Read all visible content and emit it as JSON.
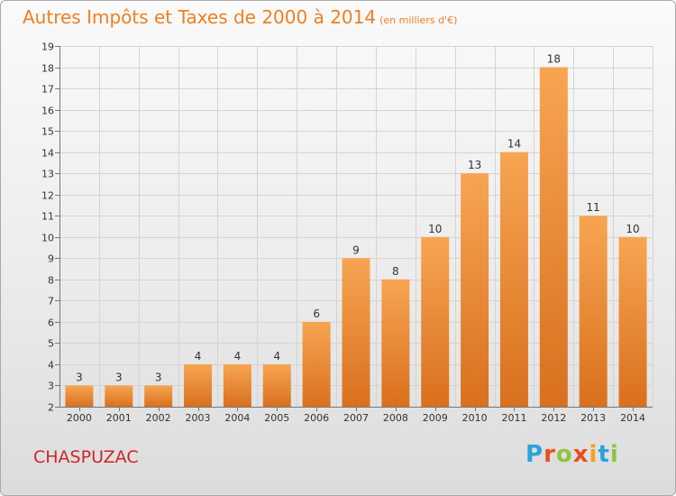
{
  "title": "Autres Impôts et Taxes de 2000 à 2014",
  "subtitle": "(en milliers d'€)",
  "commune": "CHASPUZAC",
  "logo": {
    "text": "Proxiti",
    "colors": [
      "#2aa3dc",
      "#e94e1b",
      "#8cc63f",
      "#f4a11d"
    ]
  },
  "colors": {
    "bar_top": "#f7a552",
    "bar_bottom": "#d9701d",
    "title": "#ef7f21",
    "commune": "#d2232a"
  },
  "chart_data": {
    "type": "bar",
    "title": "Autres Impôts et Taxes de 2000 à 2014",
    "subtitle": "(en milliers d'€)",
    "xlabel": "",
    "ylabel": "",
    "categories": [
      "2000",
      "2001",
      "2002",
      "2003",
      "2004",
      "2005",
      "2006",
      "2007",
      "2008",
      "2009",
      "2010",
      "2011",
      "2012",
      "2013",
      "2014"
    ],
    "values": [
      3,
      3,
      3,
      4,
      4,
      4,
      6,
      9,
      8,
      10,
      13,
      14,
      18,
      11,
      10
    ],
    "ylim": [
      2,
      19
    ],
    "yticks": [
      2,
      3,
      4,
      5,
      6,
      7,
      8,
      9,
      10,
      11,
      12,
      13,
      14,
      15,
      16,
      17,
      18,
      19
    ],
    "grid": true,
    "legend": "none"
  }
}
